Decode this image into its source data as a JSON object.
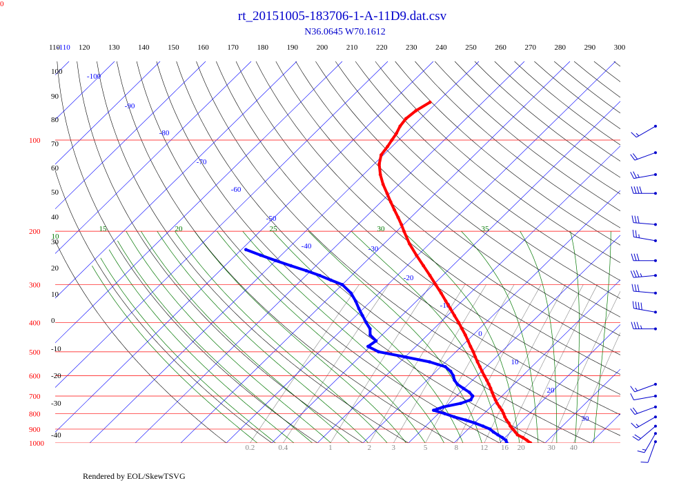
{
  "chart_data": {
    "type": "skew-t log-p diagram",
    "title": "rt_20151005-183706-1-A-11D9.dat.csv",
    "subtitle": "N36.0645 W70.1612",
    "footer": "Rendered by EOL/SkewTSVG",
    "corner_label": "0",
    "pressure_range_hpa": [
      100,
      1000
    ],
    "pressure_ticks": [
      "100",
      "200",
      "300",
      "400",
      "500",
      "600",
      "700",
      "800",
      "900",
      "1000"
    ],
    "isotherm_labels_c": [
      "-100",
      "-90",
      "-80",
      "-70",
      "-60",
      "-50",
      "-40",
      "-30",
      "-20",
      "-10",
      "0",
      "10",
      "20",
      "30"
    ],
    "dry_adiabat_labels": [
      "110",
      "120",
      "130",
      "140",
      "150",
      "160",
      "170",
      "180",
      "190",
      "200",
      "210",
      "220",
      "230",
      "240",
      "250",
      "260",
      "270",
      "280",
      "290",
      "300"
    ],
    "left_axis_labels": [
      "-110",
      "100",
      "90",
      "80",
      "70",
      "60",
      "50",
      "40",
      "30",
      "20",
      "10",
      "0",
      "-10",
      "-20",
      "-30",
      "-40"
    ],
    "moist_adiabat_labels": [
      "10",
      "15",
      "20",
      "25",
      "30",
      "35"
    ],
    "mixing_ratio_labels": [
      "0.2",
      "0.4",
      "1",
      "2",
      "3",
      "5",
      "8",
      "12",
      "16",
      "20",
      "30",
      "40"
    ],
    "temperature_profile": [
      {
        "p": 1000,
        "t": 26.8
      },
      {
        "p": 980,
        "t": 25.4
      },
      {
        "p": 960,
        "t": 23.9
      },
      {
        "p": 940,
        "t": 22.1
      },
      {
        "p": 920,
        "t": 21.0
      },
      {
        "p": 900,
        "t": 19.8
      },
      {
        "p": 880,
        "t": 18.6
      },
      {
        "p": 860,
        "t": 17.6
      },
      {
        "p": 840,
        "t": 16.4
      },
      {
        "p": 820,
        "t": 15.3
      },
      {
        "p": 800,
        "t": 14.3
      },
      {
        "p": 780,
        "t": 13.2
      },
      {
        "p": 760,
        "t": 11.9
      },
      {
        "p": 740,
        "t": 10.6
      },
      {
        "p": 720,
        "t": 9.4
      },
      {
        "p": 700,
        "t": 8.2
      },
      {
        "p": 680,
        "t": 7.0
      },
      {
        "p": 660,
        "t": 5.8
      },
      {
        "p": 640,
        "t": 4.5
      },
      {
        "p": 620,
        "t": 3.1
      },
      {
        "p": 600,
        "t": 1.6
      },
      {
        "p": 580,
        "t": 0.1
      },
      {
        "p": 560,
        "t": -1.4
      },
      {
        "p": 540,
        "t": -3.0
      },
      {
        "p": 520,
        "t": -4.6
      },
      {
        "p": 500,
        "t": -6.2
      },
      {
        "p": 480,
        "t": -8.0
      },
      {
        "p": 460,
        "t": -9.8
      },
      {
        "p": 440,
        "t": -11.7
      },
      {
        "p": 420,
        "t": -13.8
      },
      {
        "p": 400,
        "t": -16.0
      },
      {
        "p": 380,
        "t": -18.4
      },
      {
        "p": 360,
        "t": -20.9
      },
      {
        "p": 340,
        "t": -23.6
      },
      {
        "p": 320,
        "t": -26.4
      },
      {
        "p": 300,
        "t": -29.5
      },
      {
        "p": 280,
        "t": -32.8
      },
      {
        "p": 260,
        "t": -36.4
      },
      {
        "p": 240,
        "t": -40.3
      },
      {
        "p": 220,
        "t": -44.4
      },
      {
        "p": 200,
        "t": -48.4
      },
      {
        "p": 190,
        "t": -50.5
      },
      {
        "p": 180,
        "t": -52.8
      },
      {
        "p": 170,
        "t": -55.3
      },
      {
        "p": 160,
        "t": -57.9
      },
      {
        "p": 150,
        "t": -60.6
      },
      {
        "p": 140,
        "t": -63.5
      },
      {
        "p": 130,
        "t": -66.3
      },
      {
        "p": 120,
        "t": -68.9
      },
      {
        "p": 112,
        "t": -70.5
      },
      {
        "p": 105,
        "t": -71.0
      },
      {
        "p": 100,
        "t": -71.5
      },
      {
        "p": 95,
        "t": -72.0
      },
      {
        "p": 90,
        "t": -72.8
      },
      {
        "p": 85,
        "t": -73.2
      },
      {
        "p": 80,
        "t": -72.8
      },
      {
        "p": 75,
        "t": -71.6
      }
    ],
    "dewpoint_profile": [
      {
        "p": 1000,
        "t": 21.6
      },
      {
        "p": 980,
        "t": 20.8
      },
      {
        "p": 960,
        "t": 19.4
      },
      {
        "p": 940,
        "t": 17.8
      },
      {
        "p": 920,
        "t": 16.2
      },
      {
        "p": 900,
        "t": 14.8
      },
      {
        "p": 880,
        "t": 12.6
      },
      {
        "p": 860,
        "t": 10.2
      },
      {
        "p": 840,
        "t": 7.4
      },
      {
        "p": 820,
        "t": 4.2
      },
      {
        "p": 800,
        "t": 1.4
      },
      {
        "p": 780,
        "t": -1.8
      },
      {
        "p": 760,
        "t": -0.4
      },
      {
        "p": 740,
        "t": 2.6
      },
      {
        "p": 720,
        "t": 4.0
      },
      {
        "p": 700,
        "t": 3.6
      },
      {
        "p": 680,
        "t": 2.0
      },
      {
        "p": 660,
        "t": -0.2
      },
      {
        "p": 640,
        "t": -2.4
      },
      {
        "p": 620,
        "t": -4.0
      },
      {
        "p": 600,
        "t": -5.2
      },
      {
        "p": 580,
        "t": -6.8
      },
      {
        "p": 560,
        "t": -9.0
      },
      {
        "p": 540,
        "t": -13.5
      },
      {
        "p": 520,
        "t": -20.0
      },
      {
        "p": 500,
        "t": -27.0
      },
      {
        "p": 480,
        "t": -30.5
      },
      {
        "p": 460,
        "t": -30.0
      },
      {
        "p": 440,
        "t": -32.6
      },
      {
        "p": 420,
        "t": -34.0
      },
      {
        "p": 400,
        "t": -36.3
      },
      {
        "p": 380,
        "t": -38.6
      },
      {
        "p": 360,
        "t": -41.0
      },
      {
        "p": 340,
        "t": -43.4
      },
      {
        "p": 320,
        "t": -46.2
      },
      {
        "p": 300,
        "t": -50.0
      },
      {
        "p": 290,
        "t": -53.5
      },
      {
        "p": 280,
        "t": -57.0
      },
      {
        "p": 270,
        "t": -61.0
      },
      {
        "p": 260,
        "t": -65.5
      },
      {
        "p": 250,
        "t": -70.0
      },
      {
        "p": 240,
        "t": -74.5
      },
      {
        "p": 230,
        "t": -79.0
      }
    ],
    "wind_barbs": [
      {
        "p": 990,
        "speed_kt": 10,
        "dir_deg": 200
      },
      {
        "p": 930,
        "speed_kt": 15,
        "dir_deg": 210
      },
      {
        "p": 880,
        "speed_kt": 20,
        "dir_deg": 230
      },
      {
        "p": 820,
        "speed_kt": 15,
        "dir_deg": 240
      },
      {
        "p": 760,
        "speed_kt": 20,
        "dir_deg": 250
      },
      {
        "p": 700,
        "speed_kt": 10,
        "dir_deg": 260
      },
      {
        "p": 640,
        "speed_kt": 15,
        "dir_deg": 250
      },
      {
        "p": 420,
        "speed_kt": 35,
        "dir_deg": 270
      },
      {
        "p": 370,
        "speed_kt": 40,
        "dir_deg": 280
      },
      {
        "p": 320,
        "speed_kt": 30,
        "dir_deg": 275
      },
      {
        "p": 280,
        "speed_kt": 35,
        "dir_deg": 265
      },
      {
        "p": 250,
        "speed_kt": 30,
        "dir_deg": 270
      },
      {
        "p": 215,
        "speed_kt": 25,
        "dir_deg": 280
      },
      {
        "p": 190,
        "speed_kt": 30,
        "dir_deg": 275
      },
      {
        "p": 150,
        "speed_kt": 40,
        "dir_deg": 270
      },
      {
        "p": 130,
        "speed_kt": 25,
        "dir_deg": 260
      },
      {
        "p": 110,
        "speed_kt": 20,
        "dir_deg": 250
      },
      {
        "p": 90,
        "speed_kt": 15,
        "dir_deg": 240
      }
    ],
    "colors": {
      "temperature": "#ff0000",
      "dewpoint": "#0000ff",
      "isobar": "#ff0000",
      "isotherm": "#0000ff",
      "dry_adiabat": "#000000",
      "moist_adiabat": "#007700",
      "mixing_ratio": "#888888",
      "wind_barb": "#0000cc",
      "title": "#0000cc"
    }
  }
}
